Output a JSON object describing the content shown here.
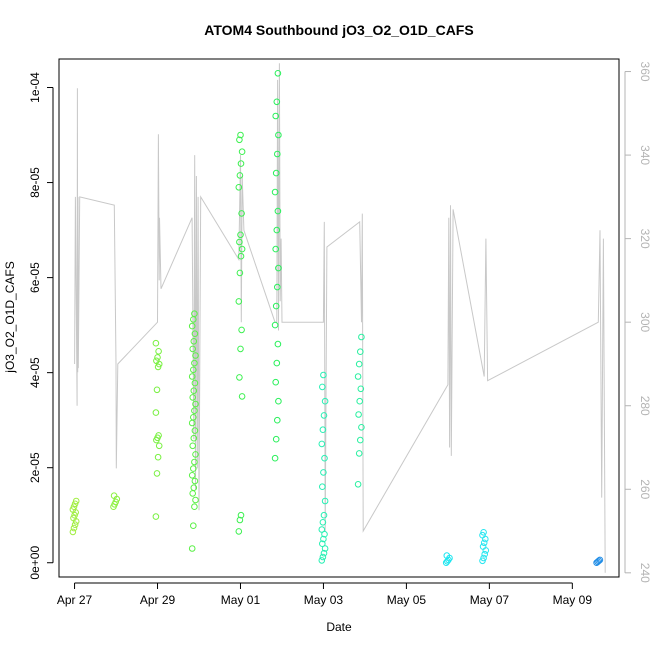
{
  "chart_data": {
    "type": "scatter",
    "title": "ATOM4 Southbound jO3_O2_O1D_CAFS",
    "xlabel": "Date",
    "ylabel": "jO3_O2_O1D_CAFS",
    "x_tick_labels": [
      "Apr 27",
      "Apr 29",
      "May 01",
      "May 03",
      "May 05",
      "May 07",
      "May 09"
    ],
    "x_tick_values": [
      "2018-04-27",
      "2018-04-29",
      "2018-05-01",
      "2018-05-03",
      "2018-05-05",
      "2018-05-07",
      "2018-05-09"
    ],
    "xlim": [
      "2018-04-26T15:00",
      "2018-05-10T03:00"
    ],
    "y_tick_labels": [
      "0e+00",
      "2e-05",
      "4e-05",
      "6e-05",
      "8e-05",
      "1e-04"
    ],
    "y_tick_values": [
      0,
      2e-05,
      4e-05,
      6e-05,
      8e-05,
      0.0001
    ],
    "ylim": [
      -3e-06,
      0.000106
    ],
    "y2_tick_labels": [
      "240",
      "260",
      "280",
      "300",
      "320",
      "340",
      "360"
    ],
    "y2_tick_values": [
      240,
      260,
      280,
      300,
      320,
      340,
      360
    ],
    "y2lim": [
      239,
      363
    ],
    "grid": false,
    "legend": "none",
    "colors": {
      "secondary_line": "#c8c8c8",
      "right_axis": "#b4b4b4",
      "axis": "#000000"
    },
    "series": [
      {
        "marker": "open-circle",
        "clusters": [
          {
            "x": "2018-04-27T00:00",
            "color": "#a0ee40",
            "values": [
              6.5e-06,
              7.3e-06,
              8e-06,
              8.7e-06,
              9.4e-06,
              1e-05,
              1.06e-05,
              1.12e-05,
              1.18e-05,
              1.24e-05,
              1.3e-05
            ]
          },
          {
            "x": "2018-04-27T23:30",
            "color": "#8cf040",
            "values": [
              1.18e-05,
              1.23e-05,
              1.28e-05,
              1.34e-05,
              1.41e-05
            ]
          },
          {
            "x": "2018-04-29T00:00",
            "color": "#78f040",
            "values": [
              9.7e-06,
              1.88e-05,
              2.22e-05,
              2.46e-05,
              2.58e-05,
              2.63e-05,
              2.68e-05,
              3.16e-05,
              3.64e-05,
              4.12e-05,
              4.18e-05,
              4.25e-05,
              4.32e-05,
              4.45e-05,
              4.62e-05
            ]
          },
          {
            "x": "2018-04-29T21:00",
            "color": "#5af046",
            "values": [
              3e-06,
              7.8e-06,
              1.18e-05,
              1.32e-05,
              1.46e-05,
              1.58e-05,
              1.72e-05,
              1.84e-05,
              1.98e-05,
              2.12e-05,
              2.28e-05,
              2.46e-05,
              2.62e-05,
              2.78e-05,
              2.94e-05,
              3.06e-05,
              3.2e-05,
              3.34e-05,
              3.48e-05,
              3.62e-05,
              3.78e-05,
              3.92e-05,
              4.06e-05,
              4.2e-05,
              4.36e-05,
              4.5e-05,
              4.66e-05,
              4.82e-05,
              4.98e-05,
              5.12e-05,
              5.24e-05
            ]
          },
          {
            "x": "2018-05-01T00:00",
            "color": "#3cf050",
            "values": [
              6.6e-06,
              9e-06,
              1e-05,
              3.5e-05,
              3.9e-05,
              4.5e-05,
              4.9e-05,
              5.5e-05,
              6.1e-05,
              6.45e-05,
              6.6e-05,
              6.75e-05,
              6.9e-05,
              7.35e-05,
              7.9e-05,
              8.15e-05,
              8.4e-05,
              8.65e-05,
              8.9e-05,
              9e-05
            ]
          },
          {
            "x": "2018-05-01T21:00",
            "color": "#28f05a",
            "values": [
              2.2e-05,
              2.6e-05,
              3e-05,
              3.4e-05,
              3.8e-05,
              4.2e-05,
              4.6e-05,
              5e-05,
              5.4e-05,
              5.8e-05,
              6.2e-05,
              6.6e-05,
              7e-05,
              7.4e-05,
              7.8e-05,
              8.2e-05,
              8.6e-05,
              9e-05,
              9.4e-05,
              9.7e-05,
              0.000103
            ]
          },
          {
            "x": "2018-05-03T00:00",
            "color": "#28f0b4",
            "values": [
              5e-07,
              1.2e-06,
              2e-06,
              3e-06,
              4e-06,
              5e-06,
              6e-06,
              7e-06,
              8.5e-06,
              1e-05,
              1.3e-05,
              1.6e-05,
              1.9e-05,
              2.2e-05,
              2.5e-05,
              2.8e-05,
              3.1e-05,
              3.4e-05,
              3.7e-05,
              3.95e-05
            ]
          },
          {
            "x": "2018-05-03T21:00",
            "color": "#28f0a0",
            "values": [
              1.65e-05,
              2.3e-05,
              2.58e-05,
              2.85e-05,
              3.12e-05,
              3.4e-05,
              3.66e-05,
              3.92e-05,
              4.18e-05,
              4.44e-05,
              4.75e-05
            ]
          },
          {
            "x": "2018-05-06T00:00",
            "color": "#1ee6f0",
            "values": [
              0.0,
              3e-07,
              6e-07,
              1e-06,
              1.5e-06
            ]
          },
          {
            "x": "2018-05-06T21:00",
            "color": "#28e6f0",
            "values": [
              4e-07,
              1e-06,
              1.8e-06,
              2.6e-06,
              3.4e-06,
              4.2e-06,
              5e-06,
              5.8e-06,
              6.4e-06
            ]
          },
          {
            "x": "2018-05-09T15:00",
            "color": "#1e8ce6",
            "values": [
              0.0,
              2e-07,
              4e-07,
              6e-07
            ]
          }
        ]
      },
      {
        "name": "",
        "axis": "right",
        "style": "line",
        "x": [
          "2018-04-27T00:00",
          "2018-04-27T00:30",
          "2018-04-27T01:30",
          "2018-04-27T01:40",
          "2018-04-27T01:50",
          "2018-04-27T02:00",
          "2018-04-27T02:10",
          "2018-04-27T03:00",
          "2018-04-27T23:00",
          "2018-04-28T00:00",
          "2018-04-28T00:10",
          "2018-04-28T01:00",
          "2018-04-29T00:00",
          "2018-04-29T00:30",
          "2018-04-29T01:00",
          "2018-04-29T01:10",
          "2018-04-29T02:00",
          "2018-04-29T20:00",
          "2018-04-29T21:00",
          "2018-04-29T21:30",
          "2018-04-29T22:00",
          "2018-04-29T22:30",
          "2018-04-29T23:00",
          "2018-04-29T23:30",
          "2018-04-30T00:00",
          "2018-04-30T01:00",
          "2018-04-30T23:00",
          "2018-05-01T00:00",
          "2018-05-01T00:30",
          "2018-05-01T01:00",
          "2018-05-01T02:00",
          "2018-05-01T20:00",
          "2018-05-01T21:00",
          "2018-05-01T21:30",
          "2018-05-01T22:00",
          "2018-05-01T22:30",
          "2018-05-01T23:00",
          "2018-05-01T23:30",
          "2018-05-02T00:00",
          "2018-05-03T00:00",
          "2018-05-03T00:30",
          "2018-05-03T01:00",
          "2018-05-03T02:00",
          "2018-05-03T21:00",
          "2018-05-03T22:00",
          "2018-05-03T22:30",
          "2018-05-03T23:00",
          "2018-05-06T00:00",
          "2018-05-06T00:30",
          "2018-05-06T01:00",
          "2018-05-06T01:30",
          "2018-05-06T02:00",
          "2018-05-06T03:00",
          "2018-05-06T21:00",
          "2018-05-06T22:00",
          "2018-05-06T23:00",
          "2018-05-09T15:00",
          "2018-05-09T16:00",
          "2018-05-09T17:00",
          "2018-05-09T18:00",
          "2018-05-09T19:00"
        ],
        "values": [
          290,
          330,
          280,
          356,
          288,
          330,
          289,
          330,
          328,
          290,
          265,
          290,
          300,
          345,
          310,
          325,
          308,
          325,
          272,
          340,
          260,
          335,
          265,
          330,
          255,
          330,
          315,
          340,
          300,
          335,
          322,
          300,
          300,
          358,
          298,
          362,
          305,
          320,
          300,
          300,
          324,
          250,
          318,
          324,
          300,
          326,
          250,
          285,
          325,
          270,
          328,
          268,
          327,
          287,
          320,
          286,
          300,
          322,
          258,
          320,
          240
        ]
      }
    ]
  }
}
